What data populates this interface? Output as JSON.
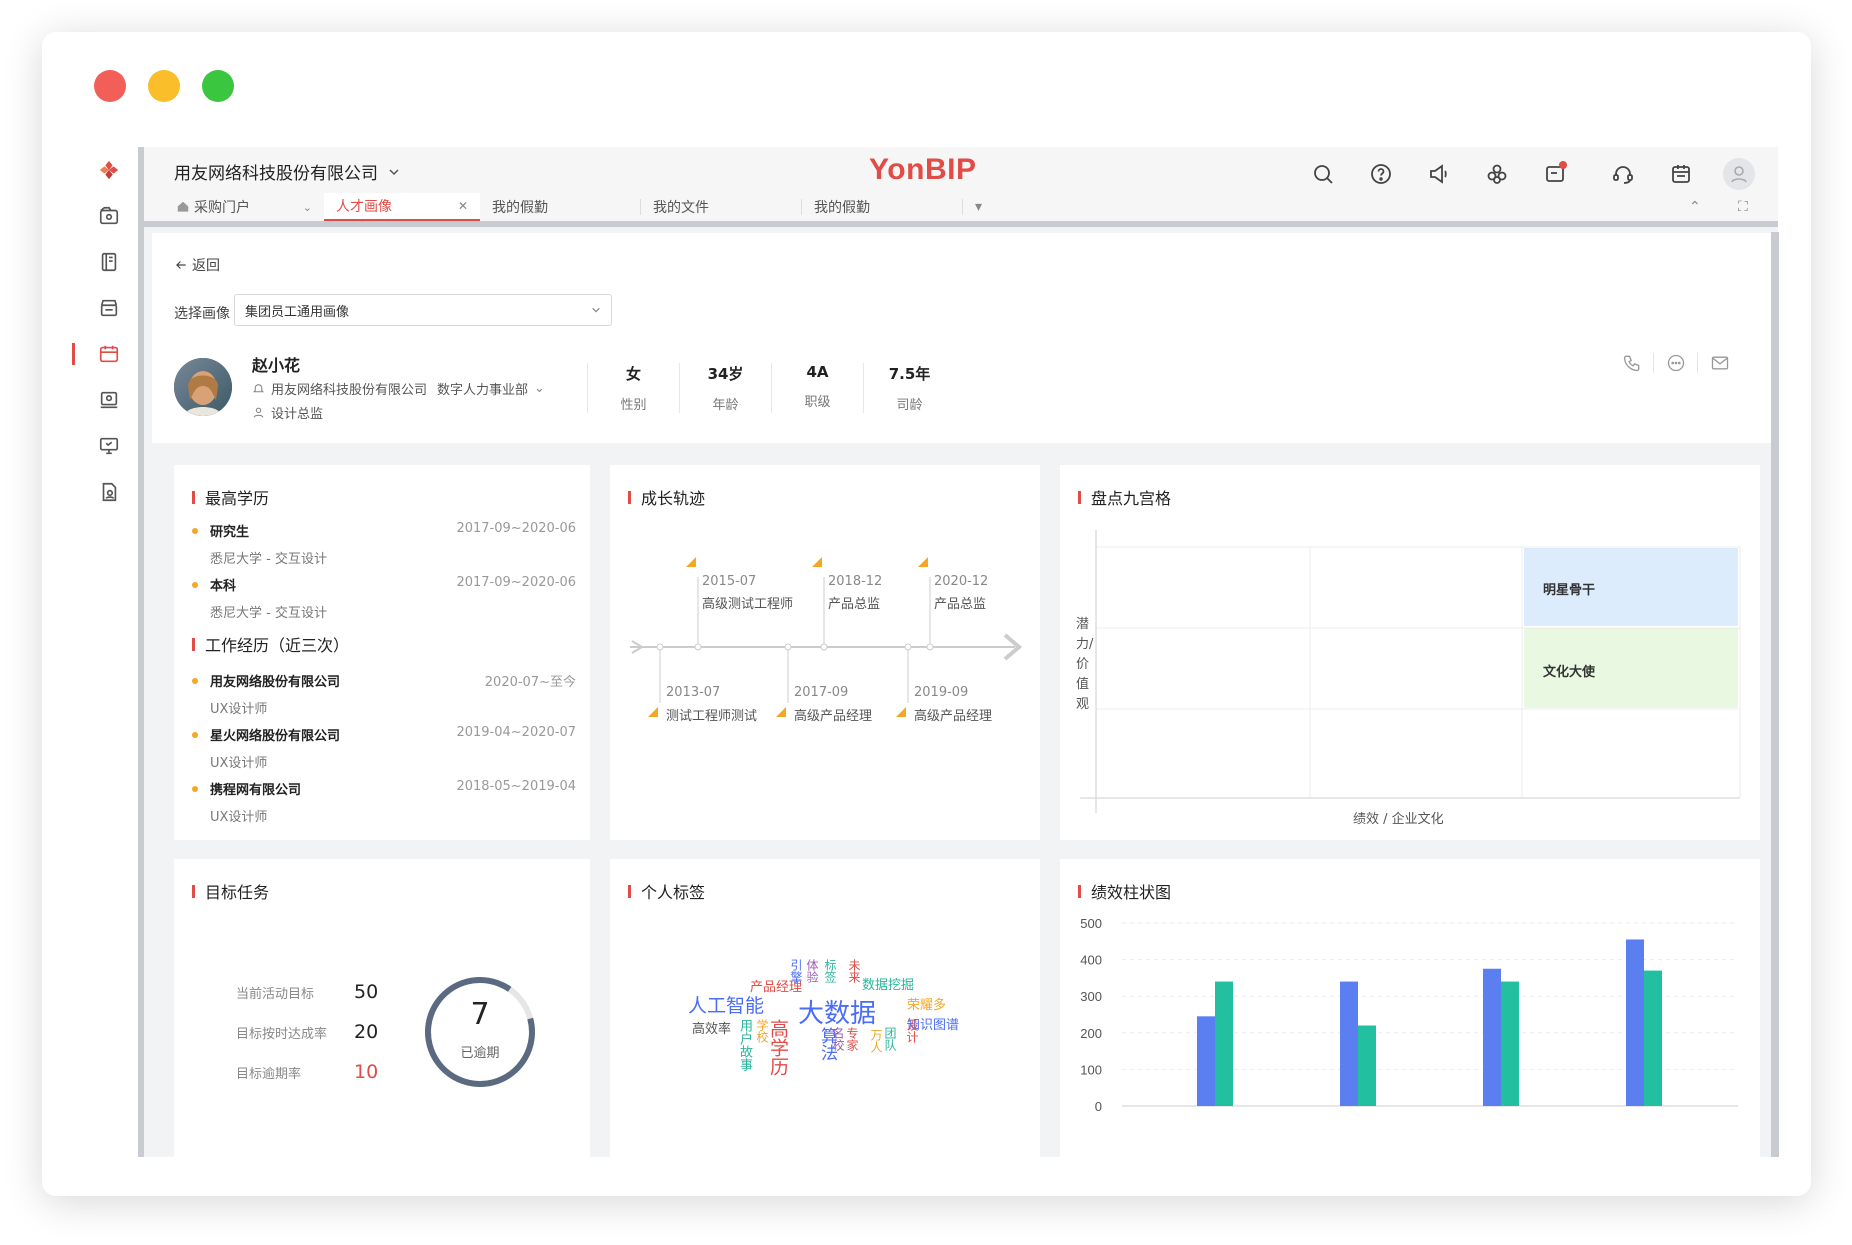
{
  "window": {
    "dots": [
      "#f25f58",
      "#f9be2a",
      "#3bc63f"
    ]
  },
  "topbar": {
    "company": "用友网络科技股份有限公司",
    "brand_a": "Yon",
    "brand_b": "BIP",
    "tabs": [
      {
        "label": "采购门户"
      },
      {
        "label": "人才画像"
      },
      {
        "label": "我的假勤"
      },
      {
        "label": "我的文件"
      },
      {
        "label": "我的假勤"
      }
    ]
  },
  "profile": {
    "back": "返回",
    "select_label": "选择画像",
    "select_value": "集团员工通用画像",
    "name": "赵小花",
    "org": "用友网络科技股份有限公司",
    "dept": "数字人力事业部",
    "title": "设计总监",
    "stats": [
      {
        "value": "女",
        "label": "性别"
      },
      {
        "value": "34岁",
        "label": "年龄"
      },
      {
        "value": "4A",
        "label": "职级"
      },
      {
        "value": "7.5年",
        "label": "司龄"
      }
    ]
  },
  "education": {
    "title": "最高学历",
    "items": [
      {
        "degree": "研究生",
        "school": "悉尼大学 - 交互设计",
        "date": "2017-09~2020-06"
      },
      {
        "degree": "本科",
        "school": "悉尼大学 - 交互设计",
        "date": "2017-09~2020-06"
      }
    ],
    "work_title": "工作经历（近三次）",
    "work": [
      {
        "company": "用友网络股份有限公司",
        "role": "UX设计师",
        "date": "2020-07~至今"
      },
      {
        "company": "星火网络股份有限公司",
        "role": "UX设计师",
        "date": "2019-04~2020-07"
      },
      {
        "company": "携程网有限公司",
        "role": "UX设计师",
        "date": "2018-05~2019-04"
      }
    ]
  },
  "growth": {
    "title": "成长轨迹",
    "above": [
      {
        "date": "2015-07",
        "role": "高级测试工程师"
      },
      {
        "date": "2018-12",
        "role": "产品总监"
      },
      {
        "date": "2020-12",
        "role": "产品总监"
      }
    ],
    "below": [
      {
        "date": "2013-07",
        "role": "测试工程师测试"
      },
      {
        "date": "2017-09",
        "role": "高级产品经理"
      },
      {
        "date": "2019-09",
        "role": "高级产品经理"
      }
    ]
  },
  "ninebox": {
    "title": "盘点九宫格",
    "ylabel": "潜力/价值观",
    "xlabel": "绩效 / 企业文化",
    "star": "明星骨干",
    "culture": "文化大使"
  },
  "objectives": {
    "title": "目标任务",
    "rows": [
      {
        "label": "当前活动目标",
        "value": "50"
      },
      {
        "label": "目标按时达成率",
        "value": "20"
      },
      {
        "label": "目标逾期率",
        "value": "10"
      }
    ],
    "ring_value": "7",
    "ring_label": "已逾期"
  },
  "tags": {
    "title": "个人标签",
    "words": [
      {
        "text": "大数据",
        "color": "#4a6cf7"
      },
      {
        "text": "人工智能",
        "color": "#4a6cf7"
      },
      {
        "text": "高学历",
        "color": "#e14c46"
      },
      {
        "text": "算法",
        "color": "#4a6cf7"
      },
      {
        "text": "产品经理",
        "color": "#e14c46"
      },
      {
        "text": "数据挖掘",
        "color": "#2ab59a"
      },
      {
        "text": "荣耀多",
        "color": "#f5a623"
      },
      {
        "text": "知识图谱",
        "color": "#4a6cf7"
      },
      {
        "text": "高效率",
        "color": "#555555"
      },
      {
        "text": "用户故事",
        "color": "#2ab59a"
      },
      {
        "text": "学校",
        "color": "#f5a623"
      },
      {
        "text": "名校",
        "color": "#9b59b6"
      },
      {
        "text": "专家",
        "color": "#e14c46"
      },
      {
        "text": "团队",
        "color": "#2ab59a"
      },
      {
        "text": "未来",
        "color": "#e14c46"
      },
      {
        "text": "标签",
        "color": "#2ab59a"
      },
      {
        "text": "设计",
        "color": "#e14c46"
      },
      {
        "text": "万人",
        "color": "#f5a623"
      },
      {
        "text": "引擎",
        "color": "#4a6cf7"
      },
      {
        "text": "体验",
        "color": "#9b59b6"
      }
    ]
  },
  "perf": {
    "title": "绩效柱状图"
  },
  "chart_data": {
    "type": "bar",
    "title": "绩效柱状图",
    "categories": [
      "",
      "",
      "",
      ""
    ],
    "series": [
      {
        "values": [
          245,
          340,
          375,
          455
        ],
        "color": "#5b7ef0"
      },
      {
        "values": [
          340,
          220,
          340,
          370
        ],
        "color": "#22bfa0"
      }
    ],
    "yticks": [
      "500",
      "400",
      "300",
      "200",
      "100",
      "0"
    ],
    "ylim": [
      0,
      500
    ],
    "grid": true
  }
}
